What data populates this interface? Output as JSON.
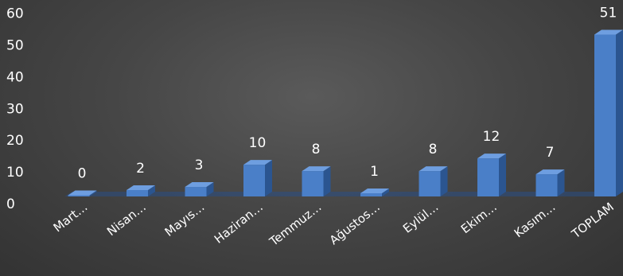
{
  "chart_data": {
    "type": "bar",
    "style": "3d-column",
    "categories": [
      "Mart…",
      "Nisan…",
      "Mayıs…",
      "Haziran…",
      "Temmuz…",
      "Ağustos…",
      "Eylül…",
      "Ekim…",
      "Kasım…",
      "TOPLAM"
    ],
    "values": [
      0,
      2,
      3,
      10,
      8,
      1,
      8,
      12,
      7,
      51
    ],
    "data_labels": [
      "0",
      "2",
      "3",
      "10",
      "8",
      "1",
      "8",
      "12",
      "7",
      "51"
    ],
    "y_ticks": [
      "0",
      "10",
      "20",
      "30",
      "40",
      "50",
      "60"
    ],
    "ylim": [
      0,
      60
    ],
    "title": "",
    "xlabel": "",
    "ylabel": "",
    "grid": false,
    "legend": "none",
    "colors": {
      "bar_front": "#4a7fc8",
      "bar_side": "#2b5590",
      "bar_top": "#6e9ee0",
      "floor": "#2a4f85",
      "background": "#404040",
      "text": "#ffffff"
    }
  }
}
